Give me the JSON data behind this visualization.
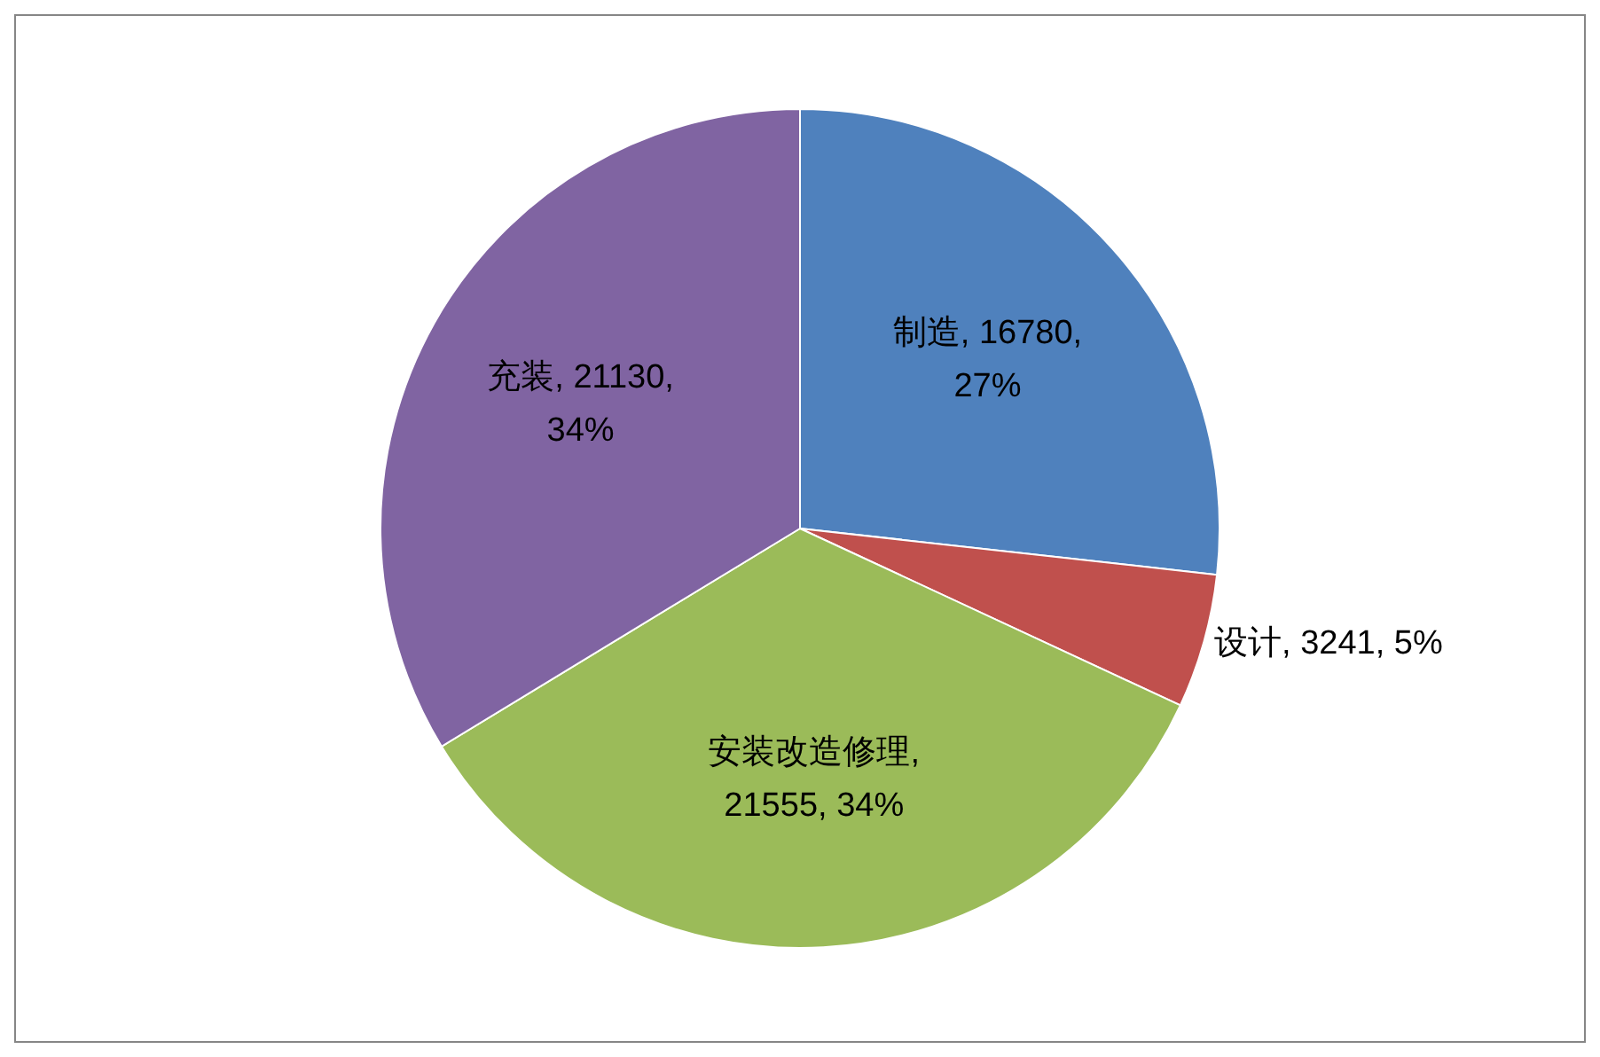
{
  "chart_data": {
    "type": "pie",
    "categories": [
      "制造",
      "设计",
      "安装改造修理",
      "充装"
    ],
    "values": [
      16780,
      3241,
      21555,
      21130
    ],
    "colors": [
      "#4f81bd",
      "#c0504d",
      "#9bbb59",
      "#8064a2"
    ],
    "value_labels": [
      ", 16780, 27%",
      ", 3241, 5%",
      ", 21555, 34%",
      ", 21130, 34%"
    ],
    "legend": false
  }
}
